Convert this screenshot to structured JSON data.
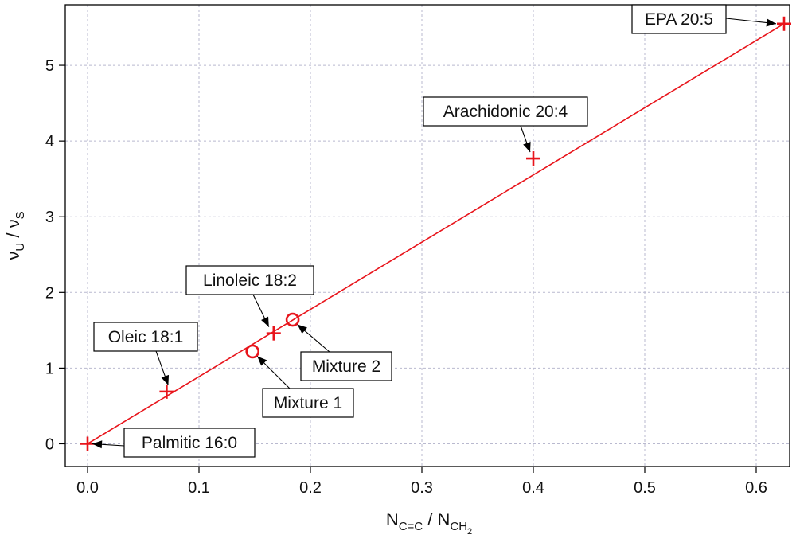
{
  "chart_data": {
    "type": "scatter",
    "xlabel": {
      "main": "N",
      "sub1": "C=C",
      "slash": " / ",
      "main2": "N",
      "sub2": "CH",
      "subsub": "2"
    },
    "ylabel": {
      "main": "ν",
      "sub1": "U",
      "slash": " / ",
      "main2": "ν",
      "sub2": "S"
    },
    "xlim": [
      -0.02,
      0.63
    ],
    "ylim": [
      -0.3,
      5.8
    ],
    "x_ticks": [
      "0.0",
      "0.1",
      "0.2",
      "0.3",
      "0.4",
      "0.5",
      "0.6"
    ],
    "y_ticks": [
      "0",
      "1",
      "2",
      "3",
      "4",
      "5"
    ],
    "grid": true,
    "fit_line": {
      "x": [
        0,
        0.625
      ],
      "y": [
        0,
        5.55
      ],
      "color": "#e8141b"
    },
    "series": [
      {
        "marker": "plus",
        "color": "#e8141b",
        "points": [
          {
            "x": 0.0,
            "y": 0.0,
            "label": "Palmitic 16:0"
          },
          {
            "x": 0.071,
            "y": 0.69,
            "label": "Oleic 18:1"
          },
          {
            "x": 0.167,
            "y": 1.46,
            "label": "Linoleic 18:2"
          },
          {
            "x": 0.4,
            "y": 3.77,
            "label": "Arachidonic 20:4"
          },
          {
            "x": 0.625,
            "y": 5.55,
            "label": "EPA 20:5"
          }
        ]
      },
      {
        "marker": "circle",
        "color": "#e8141b",
        "points": [
          {
            "x": 0.148,
            "y": 1.22,
            "label": "Mixture 1"
          },
          {
            "x": 0.184,
            "y": 1.64,
            "label": "Mixture 2"
          }
        ]
      }
    ]
  }
}
